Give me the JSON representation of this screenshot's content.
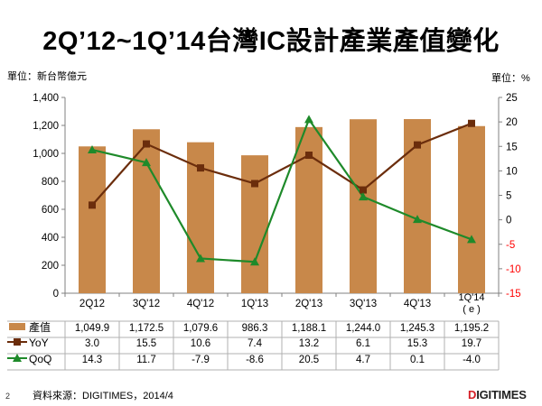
{
  "title": "2Q’12~1Q’14台灣IC設計產業產值變化",
  "unit_left": "單位：新台幣億元",
  "unit_right": "單位：%",
  "source": "資料來源：DIGITIMES，2014/4",
  "page_number": "2",
  "logo": {
    "prefix": "D",
    "rest": "IGITIMES"
  },
  "colors": {
    "bar": "#C8884A",
    "yoy": "#6B2D0C",
    "qoq": "#1E8A2A",
    "axis": "#808080",
    "right_ticks": "#ff0000"
  },
  "chart_data": {
    "type": "bar",
    "categories": [
      "2Q12",
      "3Q'12",
      "4Q'12",
      "1Q'13",
      "2Q'13",
      "3Q'13",
      "4Q'13",
      "1Q'14 (e)"
    ],
    "category_lines": [
      [
        "2Q12"
      ],
      [
        "3Q'12"
      ],
      [
        "4Q'12"
      ],
      [
        "1Q'13"
      ],
      [
        "2Q'13"
      ],
      [
        "3Q'13"
      ],
      [
        "4Q'13"
      ],
      [
        "1Q'14",
        "( e )"
      ]
    ],
    "y_left": {
      "min": 0,
      "max": 1400,
      "step": 200,
      "ticks": [
        "0",
        "200",
        "400",
        "600",
        "800",
        "1,000",
        "1,200",
        "1,400"
      ]
    },
    "y_right": {
      "min": -15,
      "max": 25,
      "step": 5,
      "ticks": [
        "-15",
        "-10",
        "-5",
        "0",
        "5",
        "10",
        "15",
        "20",
        "25"
      ]
    },
    "series": [
      {
        "name": "產值",
        "kind": "bar",
        "axis": "left",
        "values": [
          1049.9,
          1172.5,
          1079.6,
          986.3,
          1188.1,
          1244.0,
          1245.3,
          1195.2
        ],
        "labels": [
          "1,049.9",
          "1,172.5",
          "1,079.6",
          "986.3",
          "1,188.1",
          "1,244.0",
          "1,245.3",
          "1,195.2"
        ]
      },
      {
        "name": "YoY",
        "kind": "line",
        "marker": "square",
        "axis": "right",
        "values": [
          3.0,
          15.5,
          10.6,
          7.4,
          13.2,
          6.1,
          15.3,
          19.7
        ],
        "labels": [
          "3.0",
          "15.5",
          "10.6",
          "7.4",
          "13.2",
          "6.1",
          "15.3",
          "19.7"
        ]
      },
      {
        "name": "QoQ",
        "kind": "line",
        "marker": "triangle",
        "axis": "right",
        "values": [
          14.3,
          11.7,
          -7.9,
          -8.6,
          20.5,
          4.7,
          0.1,
          -4.0
        ],
        "labels": [
          "14.3",
          "11.7",
          "-7.9",
          "-8.6",
          "20.5",
          "4.7",
          "0.1",
          "-4.0"
        ]
      }
    ]
  }
}
